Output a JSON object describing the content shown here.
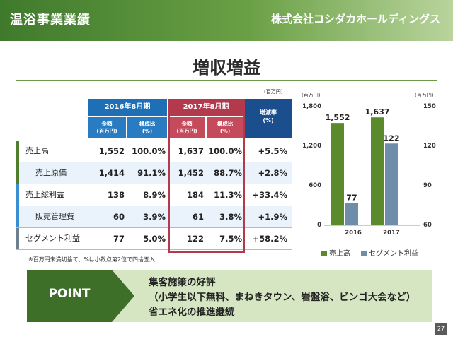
{
  "header": {
    "title": "温浴事業業績",
    "company": "株式会社コシダカホールディングス"
  },
  "slide_title": "増収増益",
  "table": {
    "unit": "(百万円)",
    "period_2016": "2016年8月期",
    "period_2017": "2017年8月期",
    "amount_label": "金額\n(百万円)",
    "ratio_label": "構成比\n(%)",
    "change_label": "増減率\n(%)",
    "rows": [
      {
        "label": "売上高",
        "amt2016": "1,552",
        "pct2016": "100.0%",
        "amt2017": "1,637",
        "pct2017": "100.0%",
        "change": "+5.5%"
      },
      {
        "label": "売上原価",
        "amt2016": "1,414",
        "pct2016": "91.1%",
        "amt2017": "1,452",
        "pct2017": "88.7%",
        "change": "+2.8%"
      },
      {
        "label": "売上総利益",
        "amt2016": "138",
        "pct2016": "8.9%",
        "amt2017": "184",
        "pct2017": "11.3%",
        "change": "+33.4%"
      },
      {
        "label": "販売管理費",
        "amt2016": "60",
        "pct2016": "3.9%",
        "amt2017": "61",
        "pct2017": "3.8%",
        "change": "+1.9%"
      },
      {
        "label": "セグメント利益",
        "amt2016": "77",
        "pct2016": "5.0%",
        "amt2017": "122",
        "pct2017": "7.5%",
        "change": "+58.2%"
      }
    ],
    "footnote": "※百万円未満切捨て、%は小数点第2位で四捨五入"
  },
  "chart_data": {
    "type": "bar",
    "categories": [
      "2016",
      "2017"
    ],
    "series": [
      {
        "name": "売上高",
        "values": [
          1552,
          1637
        ],
        "axis": "left",
        "color": "#5b8a2d"
      },
      {
        "name": "セグメント利益",
        "values": [
          77,
          122
        ],
        "axis": "right",
        "color": "#6d8dab"
      }
    ],
    "left_axis": {
      "unit": "(百万円)",
      "ylim": [
        0,
        1800
      ],
      "ticks": [
        "0",
        "600",
        "1,200",
        "1,800"
      ]
    },
    "right_axis": {
      "unit": "(百万円)",
      "ylim": [
        60,
        150
      ],
      "ticks": [
        "60",
        "90",
        "120",
        "150"
      ]
    },
    "data_labels": {
      "sales": [
        "1,552",
        "1,637"
      ],
      "profit": [
        "77",
        "122"
      ]
    },
    "legend_position": "bottom"
  },
  "point": {
    "label": "POINT",
    "line1": "集客施策の好評",
    "line2": "（小学生以下無料、まねきタウン、岩盤浴、ビンゴ大会など）",
    "line3": "省エネ化の推進継続"
  },
  "page_number": "27"
}
